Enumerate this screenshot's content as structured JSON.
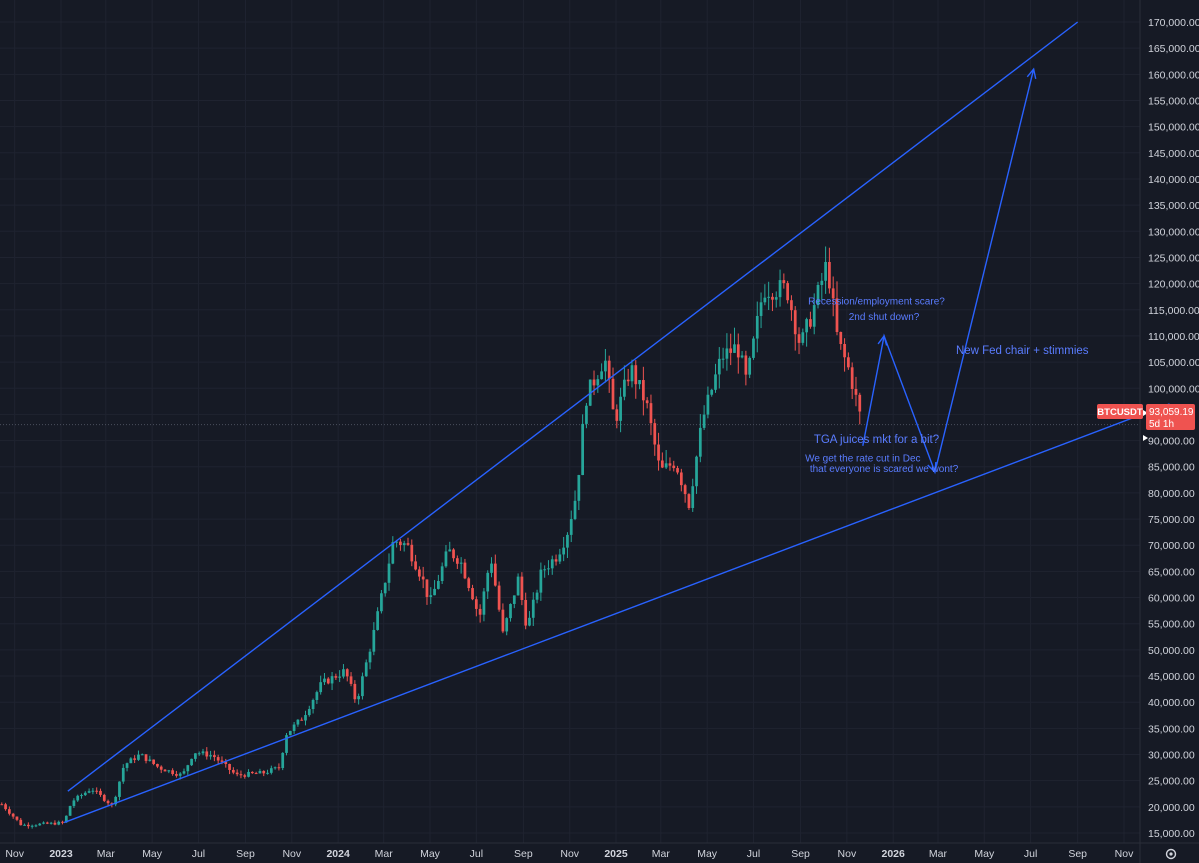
{
  "chart_data": {
    "type": "candlestick",
    "symbol": "BTCUSDT",
    "timeframe": "5d",
    "last_price": "93,059.19",
    "countdown": "5d 1h",
    "ylim": [
      12500,
      172500
    ],
    "y_ticks": [
      "15,000.00",
      "20,000.00",
      "25,000.00",
      "30,000.00",
      "35,000.00",
      "40,000.00",
      "45,000.00",
      "50,000.00",
      "55,000.00",
      "60,000.00",
      "65,000.00",
      "70,000.00",
      "75,000.00",
      "80,000.00",
      "85,000.00",
      "90,000.00",
      "95,000.00",
      "100,000.00",
      "105,000.00",
      "110,000.00",
      "115,000.00",
      "120,000.00",
      "125,000.00",
      "130,000.00",
      "135,000.00",
      "140,000.00",
      "145,000.00",
      "150,000.00",
      "155,000.00",
      "160,000.00",
      "165,000.00",
      "170,000.00"
    ],
    "x_ticks": [
      {
        "label": "Nov",
        "date": "2022-11-01"
      },
      {
        "label": "2023",
        "date": "2023-01-01"
      },
      {
        "label": "Mar",
        "date": "2023-03-01"
      },
      {
        "label": "May",
        "date": "2023-05-01"
      },
      {
        "label": "Jul",
        "date": "2023-07-01"
      },
      {
        "label": "Sep",
        "date": "2023-09-01"
      },
      {
        "label": "Nov",
        "date": "2023-11-01"
      },
      {
        "label": "2024",
        "date": "2024-01-01"
      },
      {
        "label": "Mar",
        "date": "2024-03-01"
      },
      {
        "label": "May",
        "date": "2024-05-01"
      },
      {
        "label": "Jul",
        "date": "2024-07-01"
      },
      {
        "label": "Sep",
        "date": "2024-09-01"
      },
      {
        "label": "Nov",
        "date": "2024-11-01"
      },
      {
        "label": "2025",
        "date": "2025-01-01"
      },
      {
        "label": "Mar",
        "date": "2025-03-01"
      },
      {
        "label": "May",
        "date": "2025-05-01"
      },
      {
        "label": "Jul",
        "date": "2025-07-01"
      },
      {
        "label": "Sep",
        "date": "2025-09-01"
      },
      {
        "label": "Nov",
        "date": "2025-11-01"
      },
      {
        "label": "2026",
        "date": "2026-01-01"
      },
      {
        "label": "Mar",
        "date": "2026-03-01"
      },
      {
        "label": "May",
        "date": "2026-05-01"
      },
      {
        "label": "Jul",
        "date": "2026-07-01"
      },
      {
        "label": "Sep",
        "date": "2026-09-01"
      },
      {
        "label": "Nov",
        "date": "2026-11-01"
      }
    ],
    "close_path": [
      {
        "date": "2022-10-15",
        "close": 20500
      },
      {
        "date": "2022-11-10",
        "close": 16500
      },
      {
        "date": "2022-12-20",
        "close": 16800
      },
      {
        "date": "2023-01-05",
        "close": 17000
      },
      {
        "date": "2023-01-15",
        "close": 21000
      },
      {
        "date": "2023-02-10",
        "close": 23500
      },
      {
        "date": "2023-03-10",
        "close": 20200
      },
      {
        "date": "2023-03-25",
        "close": 28000
      },
      {
        "date": "2023-04-15",
        "close": 30000
      },
      {
        "date": "2023-05-10",
        "close": 27500
      },
      {
        "date": "2023-06-10",
        "close": 26000
      },
      {
        "date": "2023-06-25",
        "close": 30500
      },
      {
        "date": "2023-07-20",
        "close": 29800
      },
      {
        "date": "2023-08-20",
        "close": 26000
      },
      {
        "date": "2023-09-25",
        "close": 26500
      },
      {
        "date": "2023-10-15",
        "close": 27500
      },
      {
        "date": "2023-10-25",
        "close": 34000
      },
      {
        "date": "2023-11-15",
        "close": 37000
      },
      {
        "date": "2023-12-10",
        "close": 43500
      },
      {
        "date": "2024-01-10",
        "close": 46000
      },
      {
        "date": "2024-01-25",
        "close": 40000
      },
      {
        "date": "2024-02-15",
        "close": 52000
      },
      {
        "date": "2024-03-01",
        "close": 62000
      },
      {
        "date": "2024-03-14",
        "close": 71000
      },
      {
        "date": "2024-04-01",
        "close": 70000
      },
      {
        "date": "2024-04-20",
        "close": 64000
      },
      {
        "date": "2024-05-01",
        "close": 59000
      },
      {
        "date": "2024-05-25",
        "close": 69000
      },
      {
        "date": "2024-06-10",
        "close": 67000
      },
      {
        "date": "2024-06-25",
        "close": 61000
      },
      {
        "date": "2024-07-05",
        "close": 56000
      },
      {
        "date": "2024-07-20",
        "close": 68000
      },
      {
        "date": "2024-08-05",
        "close": 53000
      },
      {
        "date": "2024-08-25",
        "close": 63500
      },
      {
        "date": "2024-09-06",
        "close": 54000
      },
      {
        "date": "2024-09-25",
        "close": 65000
      },
      {
        "date": "2024-10-15",
        "close": 68000
      },
      {
        "date": "2024-10-28",
        "close": 72000
      },
      {
        "date": "2024-11-10",
        "close": 80000
      },
      {
        "date": "2024-11-22",
        "close": 98000
      },
      {
        "date": "2024-12-17",
        "close": 106000
      },
      {
        "date": "2024-12-30",
        "close": 93500
      },
      {
        "date": "2025-01-20",
        "close": 104000
      },
      {
        "date": "2025-02-10",
        "close": 97000
      },
      {
        "date": "2025-02-28",
        "close": 84000
      },
      {
        "date": "2025-03-20",
        "close": 86000
      },
      {
        "date": "2025-04-07",
        "close": 78000
      },
      {
        "date": "2025-04-25",
        "close": 94000
      },
      {
        "date": "2025-05-20",
        "close": 106000
      },
      {
        "date": "2025-06-10",
        "close": 108000
      },
      {
        "date": "2025-06-22",
        "close": 101000
      },
      {
        "date": "2025-07-14",
        "close": 119000
      },
      {
        "date": "2025-08-14",
        "close": 119000
      },
      {
        "date": "2025-09-01",
        "close": 108000
      },
      {
        "date": "2025-09-20",
        "close": 116000
      },
      {
        "date": "2025-10-06",
        "close": 124000
      },
      {
        "date": "2025-10-20",
        "close": 109000
      },
      {
        "date": "2025-11-05",
        "close": 103000
      },
      {
        "date": "2025-11-21",
        "close": 93059
      }
    ],
    "annotations": [
      {
        "text": "Recession/employment scare?",
        "date": "2025-12-10",
        "price": 116000
      },
      {
        "text": "2nd shut down?",
        "date": "2025-12-20",
        "price": 113000
      },
      {
        "text": "New Fed chair + stimmies",
        "date": "2026-06-20",
        "price": 106500
      },
      {
        "text": "TGA juices mkt for a bit?",
        "date": "2025-12-10",
        "price": 89500
      },
      {
        "text": "We get the rate cut in Dec",
        "date": "2025-11-22",
        "price": 86000
      },
      {
        "text": "that everyone is scared we wont?",
        "date": "2025-12-20",
        "price": 84000
      }
    ],
    "trendlines": [
      {
        "name": "upper",
        "from": {
          "date": "2023-01-10",
          "price": 23000
        },
        "to": {
          "date": "2026-09-01",
          "price": 170000
        }
      },
      {
        "name": "lower",
        "from": {
          "date": "2023-01-05",
          "price": 17000
        },
        "to": {
          "date": "2026-12-31",
          "price": 97000
        }
      }
    ],
    "projection": [
      {
        "date": "2025-11-22",
        "price": 89000
      },
      {
        "date": "2025-12-20",
        "price": 110000
      },
      {
        "date": "2026-02-25",
        "price": 84000
      },
      {
        "date": "2026-07-05",
        "price": 161000
      }
    ]
  },
  "colors": {
    "background": "#161a25",
    "up": "#26a69a",
    "down": "#ef5350",
    "line": "#2962ff",
    "text": "#d1d4dc"
  }
}
